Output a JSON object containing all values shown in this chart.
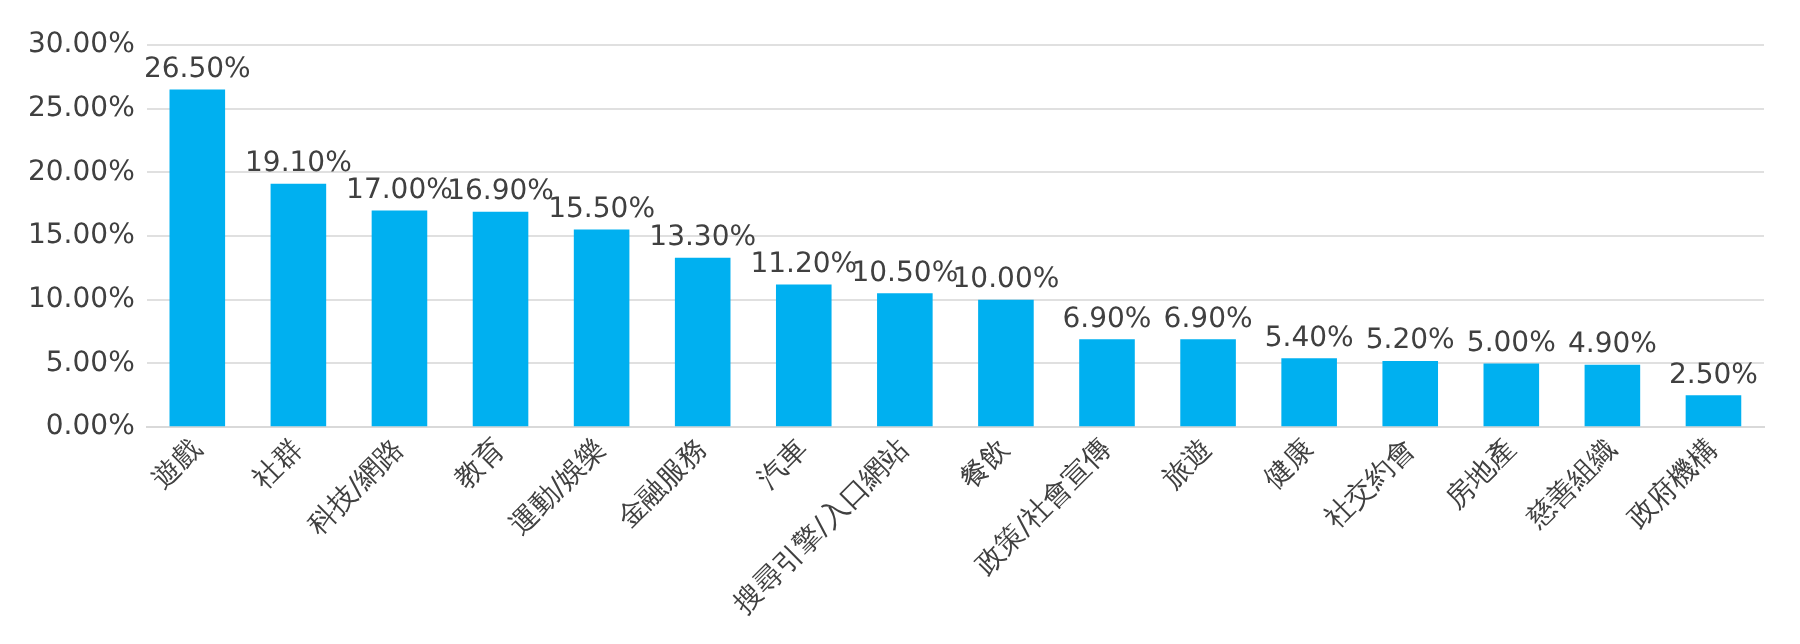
{
  "chart_data": {
    "type": "bar",
    "categories": [
      "遊戲",
      "社群",
      "科技/網路",
      "教育",
      "運動/娛樂",
      "金融服務",
      "汽車",
      "搜尋引擎/入口網站",
      "餐飲",
      "政策/社會宣傳",
      "旅遊",
      "健康",
      "社交約會",
      "房地產",
      "慈善組織",
      "政府機構"
    ],
    "values": [
      26.5,
      19.1,
      17.0,
      16.9,
      15.5,
      13.3,
      11.2,
      10.5,
      10.0,
      6.9,
      6.9,
      5.4,
      5.2,
      5.0,
      4.9,
      2.5
    ],
    "value_labels": [
      "26.50%",
      "19.10%",
      "17.00%",
      "16.90%",
      "15.50%",
      "13.30%",
      "11.20%",
      "10.50%",
      "10.00%",
      "6.90%",
      "6.90%",
      "5.40%",
      "5.20%",
      "5.00%",
      "4.90%",
      "2.50%"
    ],
    "color": "#00b0f0",
    "ylim": [
      0,
      30
    ],
    "yticks": [
      {
        "value": 0,
        "label": "0.00%"
      },
      {
        "value": 5,
        "label": "5.00%"
      },
      {
        "value": 10,
        "label": "10.00%"
      },
      {
        "value": 15,
        "label": "15.00%"
      },
      {
        "value": 20,
        "label": "20.00%"
      },
      {
        "value": 25,
        "label": "25.00%"
      },
      {
        "value": 30,
        "label": "30.00%"
      }
    ],
    "grid": "y",
    "legend": false
  }
}
